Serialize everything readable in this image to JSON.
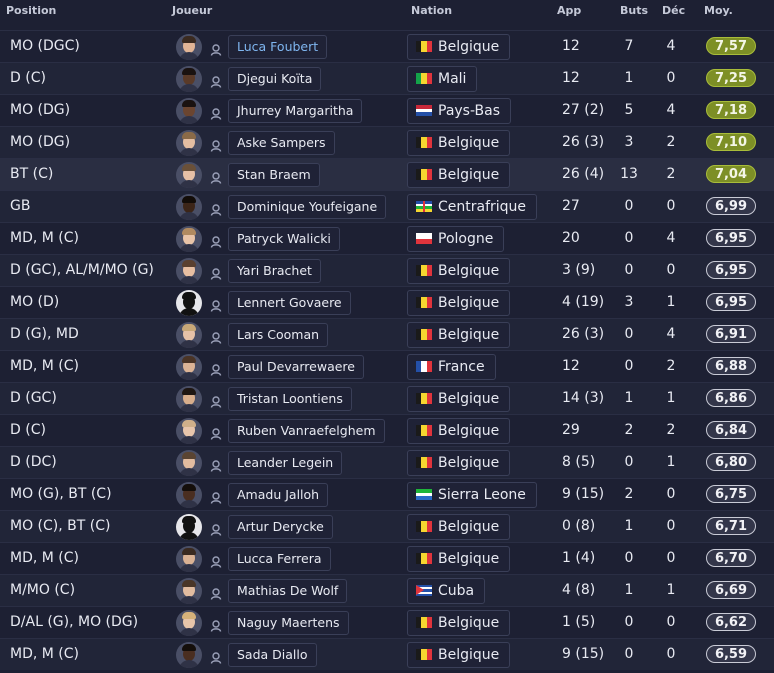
{
  "headers": {
    "position": "Position",
    "player": "Joueur",
    "nation": "Nation",
    "app": "App",
    "goals": "Buts",
    "assists": "Déc",
    "avg": "Moy."
  },
  "colors": {
    "rating_high": "#7d8f26",
    "rating_normal": "#33364a",
    "link": "#7fb6f0"
  },
  "players": [
    {
      "position": "MO (DGC)",
      "name": "Luca Foubert",
      "nation": "Belgique",
      "flag": "be",
      "app": "12",
      "goals": "7",
      "assists": "4",
      "rating": "7,57",
      "rating_level": "high",
      "link": true,
      "skin": "#e2b596",
      "hair": "#3a2a20"
    },
    {
      "position": "D (C)",
      "name": "Djegui Koïta",
      "nation": "Mali",
      "flag": "ml",
      "app": "12",
      "goals": "1",
      "assists": "0",
      "rating": "7,25",
      "rating_level": "high",
      "skin": "#5a3a28",
      "hair": "#1a1210"
    },
    {
      "position": "MO (DG)",
      "name": "Jhurrey Margaritha",
      "nation": "Pays-Bas",
      "flag": "nl",
      "app": "27 (2)",
      "goals": "5",
      "assists": "4",
      "rating": "7,18",
      "rating_level": "high",
      "skin": "#6b4530",
      "hair": "#1a1210"
    },
    {
      "position": "MO (DG)",
      "name": "Aske Sampers",
      "nation": "Belgique",
      "flag": "be",
      "app": "26 (3)",
      "goals": "3",
      "assists": "2",
      "rating": "7,10",
      "rating_level": "high",
      "skin": "#e4bea2",
      "hair": "#8a6a48"
    },
    {
      "position": "BT (C)",
      "name": "Stan Braem",
      "nation": "Belgique",
      "flag": "be",
      "app": "26 (4)",
      "goals": "13",
      "assists": "2",
      "rating": "7,04",
      "rating_level": "high",
      "highlight": true,
      "skin": "#e6c0a6",
      "hair": "#6a5038"
    },
    {
      "position": "GB",
      "name": "Dominique Youfeigane",
      "nation": "Centrafrique",
      "flag": "cf",
      "app": "27",
      "goals": "0",
      "assists": "0",
      "rating": "6,99",
      "rating_level": "normal",
      "skin": "#3c2518",
      "hair": "#120c08"
    },
    {
      "position": "MD, M (C)",
      "name": "Patryck Walicki",
      "nation": "Pologne",
      "flag": "pl",
      "app": "20",
      "goals": "0",
      "assists": "4",
      "rating": "6,95",
      "rating_level": "normal",
      "skin": "#e8c4a8",
      "hair": "#b08a60"
    },
    {
      "position": "D (GC), AL/M/MO (G)",
      "name": "Yari Brachet",
      "nation": "Belgique",
      "flag": "be",
      "app": "3 (9)",
      "goals": "0",
      "assists": "0",
      "rating": "6,95",
      "rating_level": "normal",
      "skin": "#e8bfa2",
      "hair": "#5a4030"
    },
    {
      "position": "MO (D)",
      "name": "Lennert Govaere",
      "nation": "Belgique",
      "flag": "be",
      "app": "4 (19)",
      "goals": "3",
      "assists": "1",
      "rating": "6,95",
      "rating_level": "normal",
      "silhouette": true
    },
    {
      "position": "D (G), MD",
      "name": "Lars Cooman",
      "nation": "Belgique",
      "flag": "be",
      "app": "26 (3)",
      "goals": "0",
      "assists": "4",
      "rating": "6,91",
      "rating_level": "normal",
      "skin": "#e6c2a8",
      "hair": "#c8a878"
    },
    {
      "position": "MD, M (C)",
      "name": "Paul Devarrewaere",
      "nation": "France",
      "flag": "fr",
      "app": "12",
      "goals": "0",
      "assists": "2",
      "rating": "6,88",
      "rating_level": "normal",
      "skin": "#dcb496",
      "hair": "#4a3426"
    },
    {
      "position": "D (GC)",
      "name": "Tristan Loontiens",
      "nation": "Belgique",
      "flag": "be",
      "app": "14 (3)",
      "goals": "1",
      "assists": "1",
      "rating": "6,86",
      "rating_level": "normal",
      "skin": "#d8ae8c",
      "hair": "#1e1612"
    },
    {
      "position": "D (C)",
      "name": "Ruben Vanraefelghem",
      "nation": "Belgique",
      "flag": "be",
      "app": "29",
      "goals": "2",
      "assists": "2",
      "rating": "6,84",
      "rating_level": "normal",
      "skin": "#e8c6ac",
      "hair": "#d0b08a"
    },
    {
      "position": "D (DC)",
      "name": "Leander Legein",
      "nation": "Belgique",
      "flag": "be",
      "app": "8 (5)",
      "goals": "0",
      "assists": "1",
      "rating": "6,80",
      "rating_level": "normal",
      "skin": "#e2bca0",
      "hair": "#5a4432"
    },
    {
      "position": "MO (G), BT (C)",
      "name": "Amadu Jalloh",
      "nation": "Sierra Leone",
      "flag": "sl",
      "app": "9 (15)",
      "goals": "2",
      "assists": "0",
      "rating": "6,75",
      "rating_level": "normal",
      "skin": "#4a2e20",
      "hair": "#140e0a"
    },
    {
      "position": "MO (C), BT (C)",
      "name": "Artur Derycke",
      "nation": "Belgique",
      "flag": "be",
      "app": "0 (8)",
      "goals": "1",
      "assists": "0",
      "rating": "6,71",
      "rating_level": "normal",
      "silhouette": true
    },
    {
      "position": "MD, M (C)",
      "name": "Lucca Ferrera",
      "nation": "Belgique",
      "flag": "be",
      "app": "1 (4)",
      "goals": "0",
      "assists": "0",
      "rating": "6,70",
      "rating_level": "normal",
      "skin": "#dab294",
      "hair": "#3a2a20"
    },
    {
      "position": "M/MO (C)",
      "name": "Mathias De Wolf",
      "nation": "Cuba",
      "flag": "cu",
      "app": "4 (8)",
      "goals": "1",
      "assists": "1",
      "rating": "6,69",
      "rating_level": "normal",
      "skin": "#e2bca0",
      "hair": "#4a3628"
    },
    {
      "position": "D/AL (G), MO (DG)",
      "name": "Naguy Maertens",
      "nation": "Belgique",
      "flag": "be",
      "app": "1 (5)",
      "goals": "0",
      "assists": "0",
      "rating": "6,62",
      "rating_level": "normal",
      "skin": "#e8c6aa",
      "hair": "#d6b27a"
    },
    {
      "position": "MD, M (C)",
      "name": "Sada Diallo",
      "nation": "Belgique",
      "flag": "be",
      "app": "9 (15)",
      "goals": "0",
      "assists": "0",
      "rating": "6,59",
      "rating_level": "normal",
      "skin": "#4a2e20",
      "hair": "#140e0a"
    }
  ]
}
